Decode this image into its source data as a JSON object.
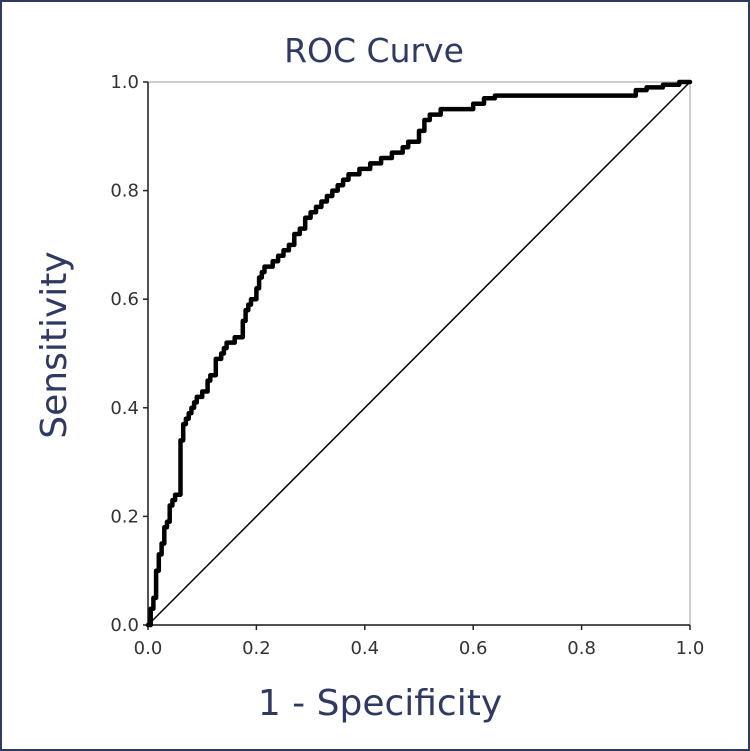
{
  "chart_data": {
    "type": "line",
    "title": "ROC Curve",
    "xlabel": "1 - Specificity",
    "ylabel": "Sensitivity",
    "xlim": [
      0,
      1
    ],
    "ylim": [
      0,
      1
    ],
    "x_ticks": [
      "0.0",
      "0.2",
      "0.4",
      "0.6",
      "0.8",
      "1.0"
    ],
    "y_ticks": [
      "0.0",
      "0.2",
      "0.4",
      "0.6",
      "0.8",
      "1.0"
    ],
    "grid": false,
    "legend": "none",
    "series": [
      {
        "style": "thick",
        "color": "#000000",
        "x": [
          0,
          0.005,
          0.005,
          0.01,
          0.01,
          0.015,
          0.015,
          0.02,
          0.02,
          0.025,
          0.025,
          0.03,
          0.03,
          0.035,
          0.035,
          0.04,
          0.04,
          0.045,
          0.045,
          0.05,
          0.05,
          0.06,
          0.06,
          0.065,
          0.065,
          0.07,
          0.07,
          0.075,
          0.075,
          0.08,
          0.08,
          0.085,
          0.085,
          0.09,
          0.09,
          0.1,
          0.1,
          0.11,
          0.11,
          0.115,
          0.115,
          0.125,
          0.125,
          0.135,
          0.135,
          0.14,
          0.14,
          0.145,
          0.145,
          0.16,
          0.16,
          0.175,
          0.175,
          0.18,
          0.18,
          0.185,
          0.185,
          0.19,
          0.19,
          0.2,
          0.2,
          0.205,
          0.205,
          0.21,
          0.21,
          0.215,
          0.215,
          0.23,
          0.23,
          0.24,
          0.24,
          0.25,
          0.25,
          0.26,
          0.26,
          0.27,
          0.27,
          0.28,
          0.28,
          0.29,
          0.29,
          0.3,
          0.3,
          0.31,
          0.31,
          0.32,
          0.32,
          0.33,
          0.33,
          0.34,
          0.34,
          0.35,
          0.35,
          0.36,
          0.36,
          0.37,
          0.37,
          0.39,
          0.39,
          0.41,
          0.41,
          0.43,
          0.43,
          0.45,
          0.45,
          0.47,
          0.47,
          0.48,
          0.48,
          0.5,
          0.5,
          0.51,
          0.51,
          0.52,
          0.52,
          0.54,
          0.54,
          0.57,
          0.57,
          0.6,
          0.6,
          0.62,
          0.62,
          0.64,
          0.64,
          0.66,
          0.66,
          0.9,
          0.9,
          0.92,
          0.92,
          0.95,
          0.95,
          0.98,
          0.98,
          1.0
        ],
        "y": [
          0,
          0,
          0.03,
          0.03,
          0.05,
          0.05,
          0.1,
          0.1,
          0.13,
          0.13,
          0.15,
          0.15,
          0.18,
          0.18,
          0.19,
          0.19,
          0.22,
          0.22,
          0.23,
          0.23,
          0.24,
          0.24,
          0.34,
          0.34,
          0.37,
          0.37,
          0.38,
          0.38,
          0.39,
          0.39,
          0.4,
          0.4,
          0.41,
          0.41,
          0.42,
          0.42,
          0.43,
          0.43,
          0.45,
          0.45,
          0.46,
          0.46,
          0.49,
          0.49,
          0.5,
          0.5,
          0.51,
          0.51,
          0.52,
          0.52,
          0.53,
          0.53,
          0.56,
          0.56,
          0.58,
          0.58,
          0.59,
          0.59,
          0.6,
          0.6,
          0.62,
          0.62,
          0.64,
          0.64,
          0.65,
          0.65,
          0.66,
          0.66,
          0.67,
          0.67,
          0.68,
          0.68,
          0.69,
          0.69,
          0.7,
          0.7,
          0.72,
          0.72,
          0.73,
          0.73,
          0.75,
          0.75,
          0.76,
          0.76,
          0.77,
          0.77,
          0.78,
          0.78,
          0.79,
          0.79,
          0.8,
          0.8,
          0.81,
          0.81,
          0.82,
          0.82,
          0.83,
          0.83,
          0.84,
          0.84,
          0.85,
          0.85,
          0.86,
          0.86,
          0.87,
          0.87,
          0.88,
          0.88,
          0.89,
          0.89,
          0.91,
          0.91,
          0.93,
          0.93,
          0.94,
          0.94,
          0.95,
          0.95,
          0.95,
          0.95,
          0.96,
          0.96,
          0.97,
          0.97,
          0.975,
          0.975,
          0.975,
          0.975,
          0.985,
          0.985,
          0.99,
          0.99,
          0.995,
          0.995,
          1.0,
          1.0
        ]
      },
      {
        "style": "reference-diagonal",
        "color": "#000000",
        "x": [
          0,
          1
        ],
        "y": [
          0,
          1
        ]
      }
    ]
  }
}
